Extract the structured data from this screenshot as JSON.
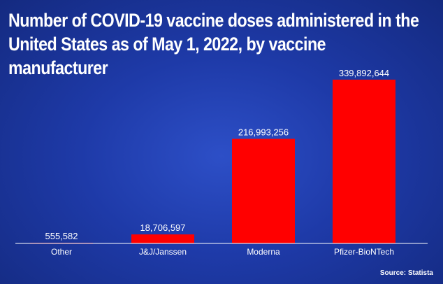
{
  "chart_data": {
    "type": "bar",
    "title": "Number of COVID-19 vaccine doses administered in the United States as of May 1, 2022, by vaccine manufacturer",
    "categories": [
      "Other",
      "J&J/Janssen",
      "Moderna",
      "Pfizer-BioNTech"
    ],
    "values": [
      555582,
      18706597,
      216993256,
      339892644
    ],
    "value_labels": [
      "555,582",
      "18,706,597",
      "216,993,256",
      "339,892,644"
    ],
    "xlabel": "",
    "ylabel": "",
    "ylim": [
      0,
      360000000
    ],
    "grid": false,
    "bar_color": "#ff0000",
    "source": "Source: Statista"
  }
}
